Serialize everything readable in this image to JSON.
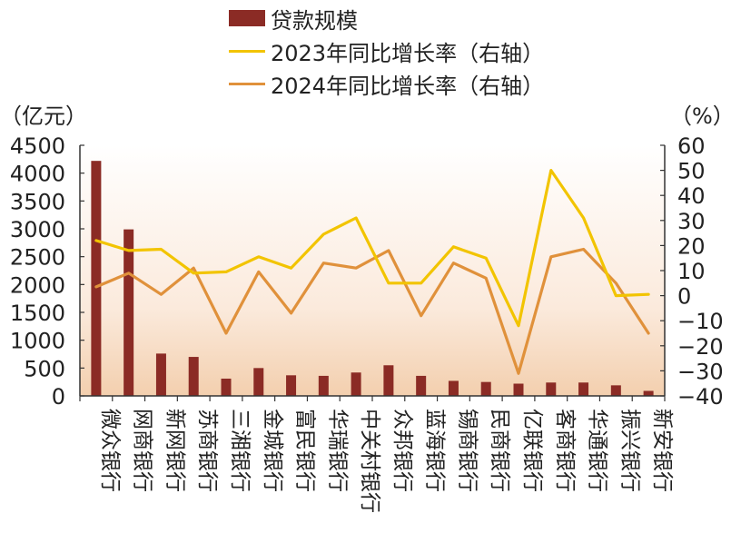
{
  "chart_data": {
    "type": "bar",
    "categories": [
      "微众银行",
      "网商银行",
      "新网银行",
      "苏商银行",
      "三湘银行",
      "金城银行",
      "富民银行",
      "华瑞银行",
      "中关村银行",
      "众邦银行",
      "蓝海银行",
      "锡商银行",
      "民商银行",
      "亿联银行",
      "客商银行",
      "华通银行",
      "振兴银行",
      "新安银行"
    ],
    "series": [
      {
        "name": "贷款规模",
        "type": "bar",
        "axis": "left",
        "values": [
          4220,
          2990,
          760,
          700,
          310,
          500,
          370,
          360,
          420,
          550,
          360,
          270,
          250,
          220,
          240,
          240,
          190,
          90
        ]
      },
      {
        "name": "2023年同比增长率（右轴）",
        "type": "line",
        "axis": "right",
        "values": [
          22,
          18,
          18.5,
          9,
          9.5,
          15.5,
          11,
          24.5,
          31,
          5,
          5,
          19.5,
          15,
          -12,
          50,
          31,
          0,
          0.5
        ]
      },
      {
        "name": "2024年同比增长率（右轴）",
        "type": "line",
        "axis": "right",
        "values": [
          3.5,
          9,
          0.5,
          11,
          -15,
          9.5,
          -7,
          13,
          11,
          18,
          -8,
          13,
          7,
          -31,
          15.5,
          18.5,
          5,
          -15
        ]
      }
    ],
    "ylabel_left": "（亿元）",
    "ylabel_right": "（%）",
    "ylim_left": [
      0,
      4500
    ],
    "yticks_left": [
      0,
      500,
      1000,
      1500,
      2000,
      2500,
      3000,
      3500,
      4000,
      4500
    ],
    "ylim_right": [
      -40,
      60
    ],
    "yticks_right": [
      -40,
      -30,
      -20,
      -10,
      0,
      10,
      20,
      30,
      40,
      50,
      60
    ],
    "legend_position": "top",
    "grid": false,
    "colors": {
      "bars": "#8b2b25",
      "line2023": "#f2c400",
      "line2024": "#e0913b",
      "background_gradient": "#f5d5b8"
    }
  },
  "legend": [
    {
      "label": "贷款规模",
      "kind": "bar",
      "color": "#8b2b25"
    },
    {
      "label": "2023年同比增长率（右轴）",
      "kind": "line",
      "color": "#f2c400"
    },
    {
      "label": "2024年同比增长率（右轴）",
      "kind": "line",
      "color": "#e0913b"
    }
  ],
  "units": {
    "left": "（亿元）",
    "right": "（%）"
  }
}
